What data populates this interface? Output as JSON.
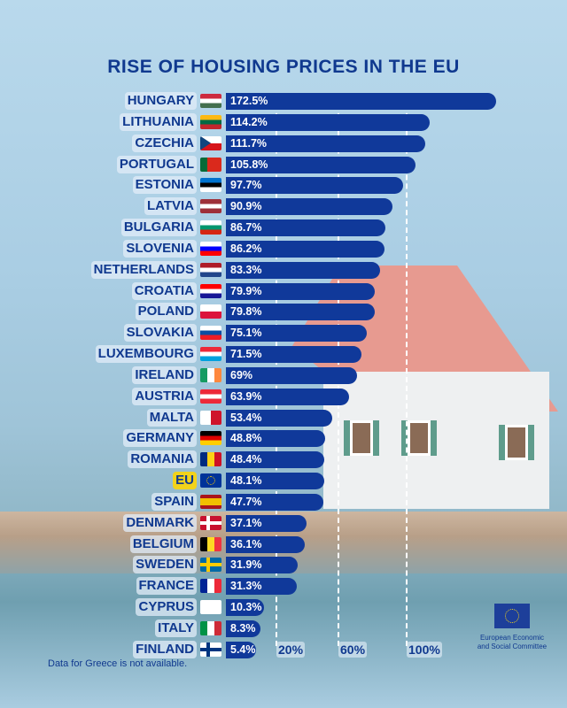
{
  "chart_data": {
    "type": "bar",
    "title": "RISE OF HOUSING PRICES IN THE EU",
    "categories": [
      "HUNGARY",
      "LITHUANIA",
      "CZECHIA",
      "PORTUGAL",
      "ESTONIA",
      "LATVIA",
      "BULGARIA",
      "SLOVENIA",
      "NETHERLANDS",
      "CROATIA",
      "POLAND",
      "SLOVAKIA",
      "LUXEMBOURG",
      "IRELAND",
      "AUSTRIA",
      "MALTA",
      "GERMANY",
      "ROMANIA",
      "EU",
      "SPAIN",
      "DENMARK",
      "BELGIUM",
      "SWEDEN",
      "FRANCE",
      "CYPRUS",
      "ITALY",
      "FINLAND"
    ],
    "values": [
      172.5,
      114.2,
      111.7,
      105.8,
      97.7,
      90.9,
      86.7,
      86.2,
      83.3,
      79.9,
      79.8,
      75.1,
      71.5,
      69,
      63.9,
      53.4,
      48.8,
      48.4,
      48.1,
      47.7,
      37.1,
      36.1,
      31.9,
      31.3,
      10.3,
      8.3,
      5.4
    ],
    "labels": [
      "172.5%",
      "114.2%",
      "111.7%",
      "105.8%",
      "97.7%",
      "90.9%",
      "86.7%",
      "86.2%",
      "83.3%",
      "79.9%",
      "79.8%",
      "75.1%",
      "71.5%",
      "69%",
      "63.9%",
      "53.4%",
      "48.8%",
      "48.4%",
      "48.1%",
      "47.7%",
      "37.1%",
      "36.1%",
      "31.9%",
      "31.3%",
      "10.3%",
      "8.3%",
      "5.4%"
    ],
    "ticks": [
      "20%",
      "60%",
      "100%"
    ],
    "bar_color": "#10399a",
    "xlabel": "",
    "ylabel": ""
  },
  "flags": [
    [
      "h",
      "#cd2a3e",
      "#ffffff",
      "#436f4d"
    ],
    [
      "h",
      "#fdb913",
      "#006a44",
      "#c1272d"
    ],
    [
      "cz"
    ],
    [
      "v",
      "#046a38",
      "#da291c",
      "#da291c"
    ],
    [
      "h",
      "#0072ce",
      "#000000",
      "#ffffff"
    ],
    [
      "h",
      "#9e3039",
      "#ffffff",
      "#9e3039"
    ],
    [
      "h",
      "#ffffff",
      "#00966e",
      "#d62612"
    ],
    [
      "h",
      "#ffffff",
      "#0000ff",
      "#ff0000"
    ],
    [
      "h",
      "#ae1c28",
      "#ffffff",
      "#21468b"
    ],
    [
      "h",
      "#ff0000",
      "#ffffff",
      "#171796"
    ],
    [
      "h",
      "#ffffff",
      "#ffffff",
      "#dc143c",
      "#dc143c"
    ],
    [
      "h",
      "#ffffff",
      "#0b4ea2",
      "#ee1c25"
    ],
    [
      "h",
      "#ed2939",
      "#ffffff",
      "#00a1de"
    ],
    [
      "v",
      "#169b62",
      "#ffffff",
      "#ff883e"
    ],
    [
      "h",
      "#ed2939",
      "#ffffff",
      "#ed2939"
    ],
    [
      "v",
      "#ffffff",
      "#cf142b"
    ],
    [
      "h",
      "#000000",
      "#dd0000",
      "#ffce00"
    ],
    [
      "v",
      "#002b7f",
      "#fcd116",
      "#ce1126"
    ],
    [
      "eu"
    ],
    [
      "h",
      "#aa151b",
      "#f1bf00",
      "#f1bf00",
      "#aa151b"
    ],
    [
      "cross",
      "#c8102e",
      "#ffffff"
    ],
    [
      "v",
      "#000000",
      "#fdda24",
      "#ef3340"
    ],
    [
      "cross",
      "#006aa7",
      "#fecc00"
    ],
    [
      "v",
      "#002395",
      "#ffffff",
      "#ed2939"
    ],
    [
      "h",
      "#ffffff"
    ],
    [
      "v",
      "#009246",
      "#ffffff",
      "#ce2b37"
    ],
    [
      "cross",
      "#ffffff",
      "#003580"
    ]
  ],
  "note": "Data for Greece is not available.",
  "logo": {
    "line1": "European Economic",
    "line2": "and Social Committee"
  }
}
